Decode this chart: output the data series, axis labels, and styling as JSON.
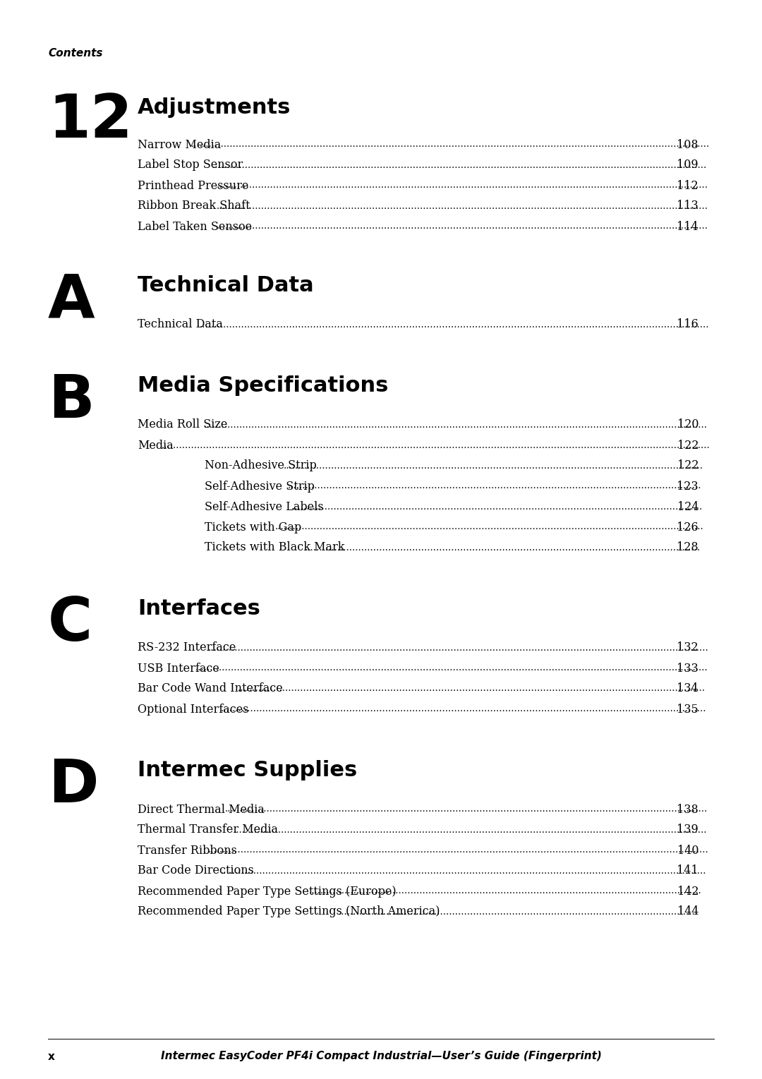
{
  "background_color": "#ffffff",
  "page_header": "Contents",
  "footer_page_num": "x",
  "footer_text": "Intermec EasyCoder PF4i Compact Industrial—User’s Guide (Fingerprint)",
  "sections": [
    {
      "number": "12",
      "title": "Adjustments",
      "entries": [
        {
          "text": "Narrow Media",
          "page": "108",
          "indent": 0
        },
        {
          "text": "Label Stop Sensor",
          "page": "109",
          "indent": 0
        },
        {
          "text": "Printhead Pressure",
          "page": "112",
          "indent": 0
        },
        {
          "text": "Ribbon Break Shaft",
          "page": "113",
          "indent": 0
        },
        {
          "text": "Label Taken Sensoe",
          "page": "114",
          "indent": 0
        }
      ]
    },
    {
      "number": "A",
      "title": "Technical Data",
      "entries": [
        {
          "text": "Technical Data",
          "page": "116",
          "indent": 0
        }
      ]
    },
    {
      "number": "B",
      "title": "Media Specifications",
      "entries": [
        {
          "text": "Media Roll Size",
          "page": "120",
          "indent": 0
        },
        {
          "text": "Media",
          "page": "122",
          "indent": 0
        },
        {
          "text": "Non-Adhesive Strip",
          "page": "122",
          "indent": 1
        },
        {
          "text": "Self-Adhesive Strip",
          "page": "123",
          "indent": 1
        },
        {
          "text": "Self-Adhesive Labels",
          "page": "124",
          "indent": 1
        },
        {
          "text": "Tickets with Gap",
          "page": "126",
          "indent": 1
        },
        {
          "text": "Tickets with Black Mark",
          "page": "128",
          "indent": 1
        }
      ]
    },
    {
      "number": "C",
      "title": "Interfaces",
      "entries": [
        {
          "text": "RS-232 Interface",
          "page": "132",
          "indent": 0
        },
        {
          "text": "USB Interface",
          "page": "133",
          "indent": 0
        },
        {
          "text": "Bar Code Wand Interface",
          "page": "134",
          "indent": 0
        },
        {
          "text": "Optional Interfaces",
          "page": "135",
          "indent": 0
        }
      ]
    },
    {
      "number": "D",
      "title": "Intermec Supplies",
      "entries": [
        {
          "text": "Direct Thermal Media",
          "page": "138",
          "indent": 0
        },
        {
          "text": "Thermal Transfer Media",
          "page": "139",
          "indent": 0
        },
        {
          "text": "Transfer Ribbons",
          "page": "140",
          "indent": 0
        },
        {
          "text": "Bar Code Directions",
          "page": "141",
          "indent": 0
        },
        {
          "text": "Recommended Paper Type Settings (Europe)",
          "page": "142",
          "indent": 0
        },
        {
          "text": "Recommended Paper Type Settings (North America)",
          "page": "144",
          "indent": 0
        }
      ]
    }
  ]
}
